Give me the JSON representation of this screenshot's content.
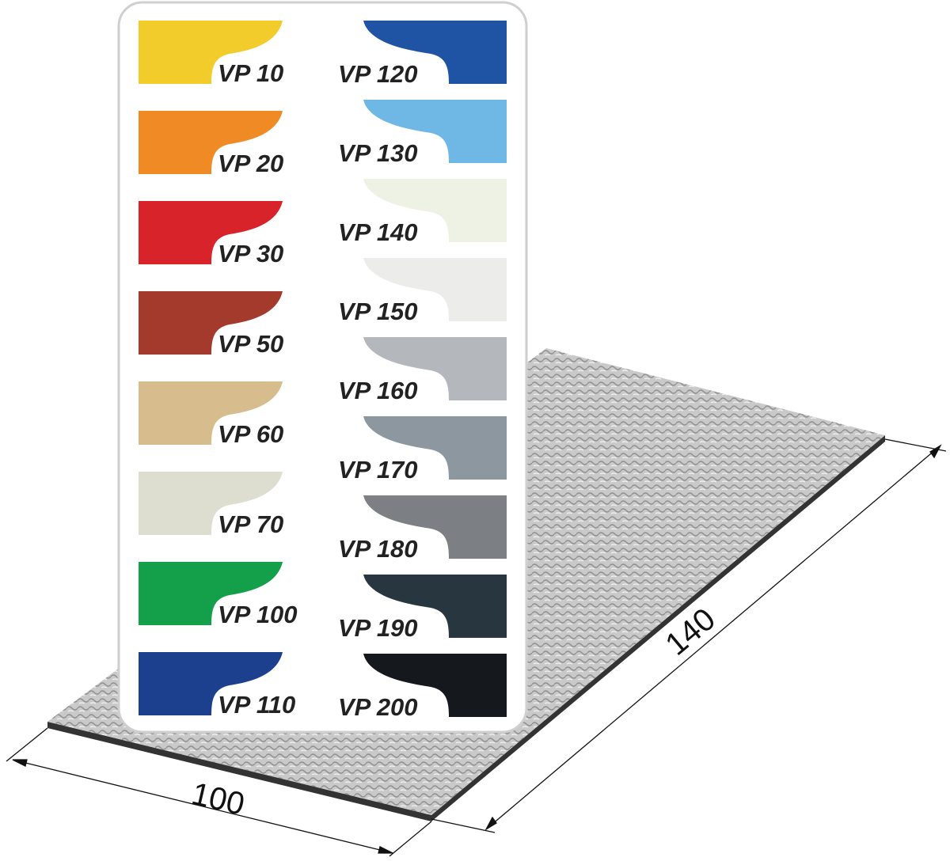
{
  "dimensions": {
    "width_label": "100",
    "length_label": "140"
  },
  "swatches_left": [
    {
      "label": "VP 10",
      "color": "#f2cc2a"
    },
    {
      "label": "VP 20",
      "color": "#f08a24"
    },
    {
      "label": "VP 30",
      "color": "#d8232a"
    },
    {
      "label": "VP 50",
      "color": "#a43a2c"
    },
    {
      "label": "VP 60",
      "color": "#d7bd8e"
    },
    {
      "label": "VP 70",
      "color": "#ddddd0"
    },
    {
      "label": "VP 100",
      "color": "#14a04a"
    },
    {
      "label": "VP 110",
      "color": "#1c3f8e"
    }
  ],
  "swatches_right": [
    {
      "label": "VP 120",
      "color": "#1f53a3"
    },
    {
      "label": "VP 130",
      "color": "#6fb8e6"
    },
    {
      "label": "VP 140",
      "color": "#eef2e4"
    },
    {
      "label": "VP 150",
      "color": "#ececea"
    },
    {
      "label": "VP 160",
      "color": "#b4b8bc"
    },
    {
      "label": "VP 170",
      "color": "#8c979f"
    },
    {
      "label": "VP 180",
      "color": "#7c8084"
    },
    {
      "label": "VP 190",
      "color": "#283640"
    },
    {
      "label": "VP 200",
      "color": "#15191d"
    }
  ]
}
